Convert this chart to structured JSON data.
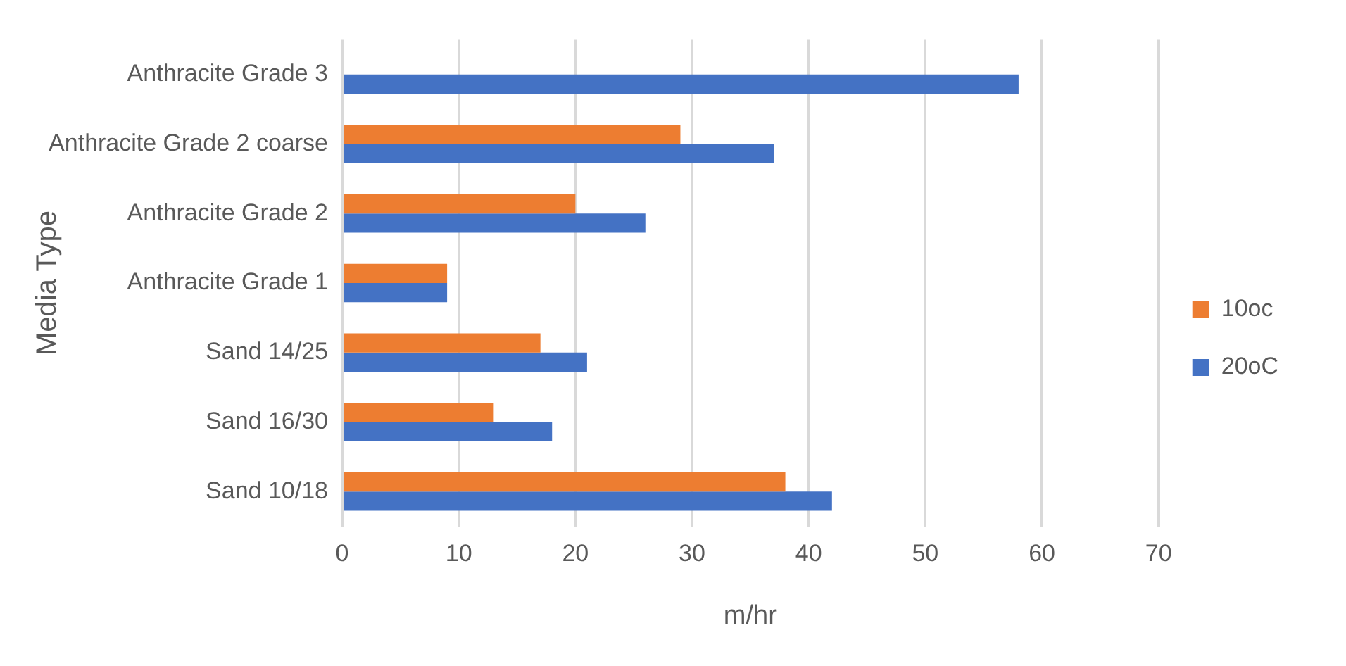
{
  "chart_data": {
    "type": "bar",
    "orientation": "horizontal",
    "xlabel": "m/hr",
    "ylabel": "Media Type",
    "categories": [
      "Anthracite Grade 3",
      "Anthracite Grade 2 coarse",
      "Anthracite Grade 2",
      "Anthracite Grade 1",
      "Sand 14/25",
      "Sand 16/30",
      "Sand 10/18"
    ],
    "series": [
      {
        "name": "10oc",
        "color": "#ed7d31",
        "values": [
          null,
          29,
          20,
          9,
          17,
          13,
          38
        ]
      },
      {
        "name": "20oC",
        "color": "#4472c4",
        "values": [
          58,
          37,
          26,
          9,
          21,
          18,
          42
        ]
      }
    ],
    "xlim": [
      0,
      70
    ],
    "xticks": [
      0,
      10,
      20,
      30,
      40,
      50,
      60,
      70
    ],
    "grid": "x",
    "legend": "right"
  }
}
